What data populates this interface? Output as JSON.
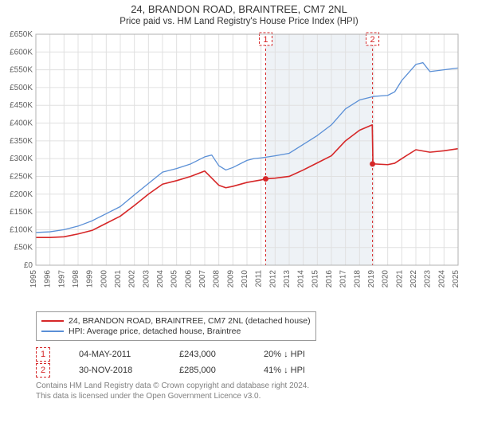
{
  "title_line1": "24, BRANDON ROAD, BRAINTREE, CM7 2NL",
  "title_line2": "Price paid vs. HM Land Registry's House Price Index (HPI)",
  "title_fontsize_1": 13,
  "title_fontsize_2": 11.5,
  "chart": {
    "type": "line",
    "background_color": "#ffffff",
    "grid_color": "#e0e0e0",
    "axis_label_color": "#606060",
    "axis_fontsize": 10,
    "y": {
      "min": 0,
      "max": 650000,
      "tick_step": 50000,
      "tick_labels": [
        "£0",
        "£50K",
        "£100K",
        "£150K",
        "£200K",
        "£250K",
        "£300K",
        "£350K",
        "£400K",
        "£450K",
        "£500K",
        "£550K",
        "£600K",
        "£650K"
      ]
    },
    "x": {
      "min": 1995,
      "max": 2025,
      "tick_step": 1,
      "tick_labels": [
        "1995",
        "1996",
        "1997",
        "1998",
        "1999",
        "2000",
        "2001",
        "2002",
        "2003",
        "2004",
        "2005",
        "2006",
        "2007",
        "2008",
        "2009",
        "2010",
        "2011",
        "2012",
        "2013",
        "2014",
        "2015",
        "2016",
        "2017",
        "2018",
        "2019",
        "2020",
        "2021",
        "2022",
        "2023",
        "2024",
        "2025"
      ]
    },
    "series": [
      {
        "name": "24, BRANDON ROAD, BRAINTREE, CM7 2NL (detached house)",
        "color": "#d62728",
        "line_width": 1.6,
        "points": [
          [
            1995,
            78000
          ],
          [
            1996,
            78000
          ],
          [
            1997,
            80000
          ],
          [
            1998,
            88000
          ],
          [
            1999,
            98000
          ],
          [
            2000,
            118000
          ],
          [
            2001,
            138000
          ],
          [
            2002,
            168000
          ],
          [
            2003,
            200000
          ],
          [
            2004,
            228000
          ],
          [
            2005,
            238000
          ],
          [
            2006,
            250000
          ],
          [
            2007,
            265000
          ],
          [
            2007.5,
            245000
          ],
          [
            2008,
            225000
          ],
          [
            2008.5,
            218000
          ],
          [
            2009,
            222000
          ],
          [
            2010,
            233000
          ],
          [
            2011,
            240000
          ],
          [
            2011.33,
            243000
          ],
          [
            2012,
            245000
          ],
          [
            2013,
            250000
          ],
          [
            2014,
            268000
          ],
          [
            2015,
            288000
          ],
          [
            2016,
            308000
          ],
          [
            2017,
            350000
          ],
          [
            2018,
            380000
          ],
          [
            2018.9,
            395000
          ],
          [
            2018.95,
            285000
          ],
          [
            2019,
            285000
          ],
          [
            2020,
            283000
          ],
          [
            2020.5,
            287000
          ],
          [
            2021,
            300000
          ],
          [
            2022,
            325000
          ],
          [
            2023,
            318000
          ],
          [
            2024,
            322000
          ],
          [
            2025,
            328000
          ]
        ]
      },
      {
        "name": "HPI: Average price, detached house, Braintree",
        "color": "#5a8fd6",
        "line_width": 1.3,
        "points": [
          [
            1995,
            92000
          ],
          [
            1996,
            94000
          ],
          [
            1997,
            100000
          ],
          [
            1998,
            110000
          ],
          [
            1999,
            125000
          ],
          [
            2000,
            145000
          ],
          [
            2001,
            165000
          ],
          [
            2002,
            198000
          ],
          [
            2003,
            230000
          ],
          [
            2004,
            262000
          ],
          [
            2005,
            272000
          ],
          [
            2006,
            285000
          ],
          [
            2007,
            305000
          ],
          [
            2007.5,
            310000
          ],
          [
            2008,
            280000
          ],
          [
            2008.5,
            268000
          ],
          [
            2009,
            275000
          ],
          [
            2010,
            295000
          ],
          [
            2010.5,
            300000
          ],
          [
            2011,
            302000
          ],
          [
            2012,
            308000
          ],
          [
            2013,
            315000
          ],
          [
            2014,
            340000
          ],
          [
            2015,
            365000
          ],
          [
            2016,
            395000
          ],
          [
            2017,
            440000
          ],
          [
            2018,
            465000
          ],
          [
            2019,
            475000
          ],
          [
            2020,
            478000
          ],
          [
            2020.5,
            488000
          ],
          [
            2021,
            520000
          ],
          [
            2022,
            565000
          ],
          [
            2022.5,
            570000
          ],
          [
            2023,
            545000
          ],
          [
            2024,
            550000
          ],
          [
            2025,
            555000
          ]
        ]
      }
    ],
    "events": [
      {
        "label": "1",
        "year": 2011.33,
        "marker_color": "#d62728",
        "date": "04-MAY-2011",
        "price_label": "£243,000",
        "price_value": 243000,
        "diff_label": "20% ↓ HPI"
      },
      {
        "label": "2",
        "year": 2018.92,
        "marker_color": "#d62728",
        "date": "30-NOV-2018",
        "price_label": "£285,000",
        "price_value": 285000,
        "diff_label": "41% ↓ HPI"
      }
    ],
    "sale_band": {
      "from_year": 2011.33,
      "to_year": 2018.92,
      "color": "#eef2f6"
    }
  },
  "legend_border_color": "#999999",
  "footer_text": "Contains HM Land Registry data © Crown copyright and database right 2024.\nThis data is licensed under the Open Government Licence v3.0.",
  "footer_color": "#808080"
}
